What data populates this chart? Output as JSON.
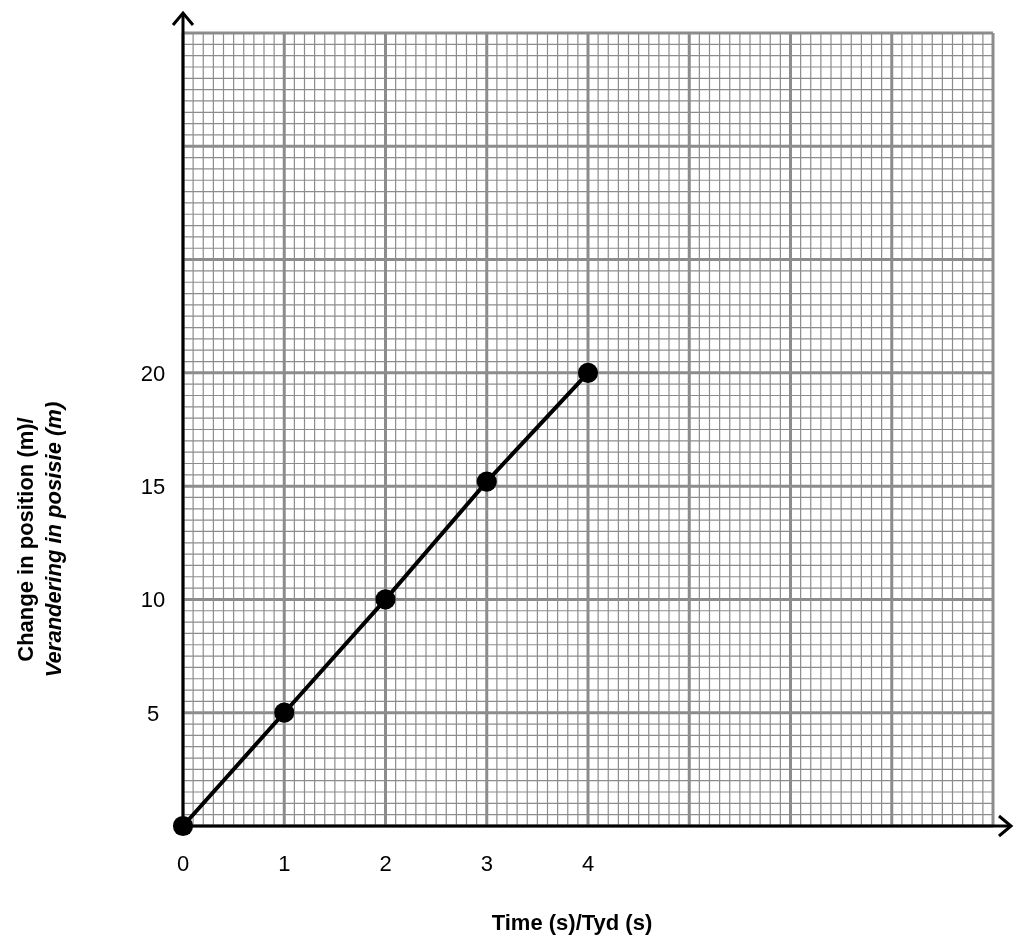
{
  "chart_data": {
    "type": "line",
    "xlabel": "Time (s)/Tyd (s)",
    "ylabel": "Change in position (m)/\n*Verandering in posisie (m)*",
    "x": [
      0,
      1,
      2,
      3,
      4
    ],
    "series": [
      {
        "color": "#000000",
        "values": [
          0,
          5,
          10,
          15.2,
          20
        ]
      }
    ],
    "xlim": [
      0,
      8
    ],
    "ylim": [
      0,
      35
    ],
    "xticks": [
      0,
      1,
      2,
      3,
      4,
      {
        "value": 5,
        "label": null
      },
      {
        "value": 6,
        "label": null
      },
      {
        "value": 7,
        "label": null
      },
      {
        "value": 8,
        "label": null
      }
    ],
    "yticks": [
      {
        "value": 0,
        "label": null
      },
      5,
      10,
      15,
      20,
      {
        "value": 25,
        "label": null
      },
      {
        "value": 30,
        "label": null
      },
      {
        "value": 35,
        "label": null
      }
    ],
    "grid": true,
    "marker": "circle",
    "line_style": "solid"
  }
}
